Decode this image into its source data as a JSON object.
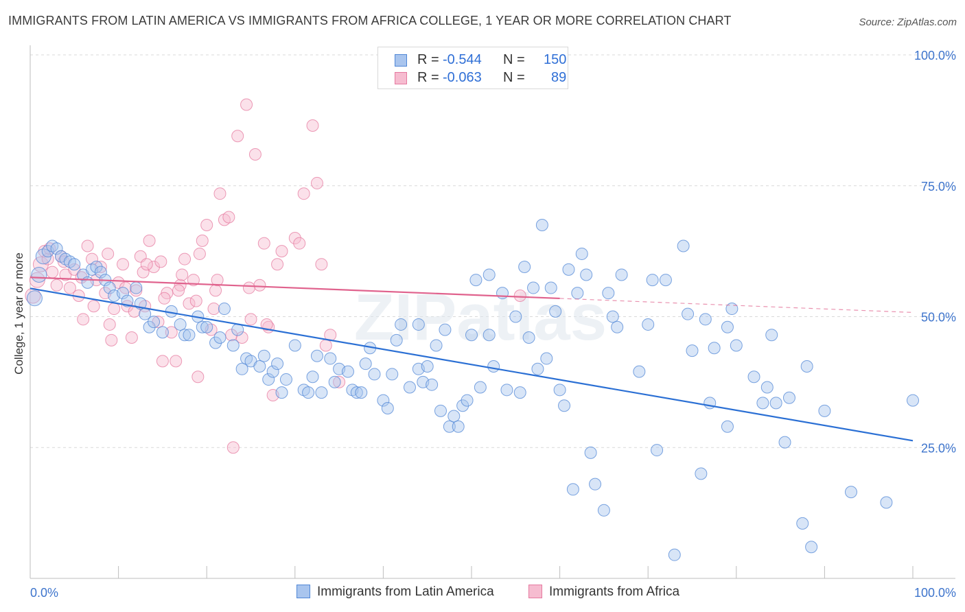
{
  "title": "IMMIGRANTS FROM LATIN AMERICA VS IMMIGRANTS FROM AFRICA COLLEGE, 1 YEAR OR MORE CORRELATION CHART",
  "source": "Source: ZipAtlas.com",
  "watermark": "ZIPatlas",
  "legend": {
    "r_label": "R =",
    "n_label": "N =",
    "series": [
      {
        "name": "Immigrants from Latin America",
        "r": "-0.544",
        "n": "150",
        "fill": "#a9c5ee",
        "stroke": "#4f86d6"
      },
      {
        "name": "Immigrants from Africa",
        "r": "-0.063",
        "n": "89",
        "fill": "#f6bcd0",
        "stroke": "#e5799f"
      }
    ]
  },
  "colors": {
    "blue_line": "#2a6fd4",
    "pink_line": "#e0628d",
    "grid": "#d9d9d9",
    "tick_label": "#3d74cc"
  },
  "chart_data": {
    "type": "scatter",
    "xlabel": "",
    "ylabel": "College, 1 year or more",
    "xlim": [
      0,
      100
    ],
    "ylim": [
      0,
      100
    ],
    "x_tick_labels": [
      "0.0%",
      "100.0%"
    ],
    "y_ticks": [
      25,
      50,
      75,
      100
    ],
    "y_tick_labels": [
      "25.0%",
      "50.0%",
      "75.0%",
      "100.0%"
    ],
    "grid": true,
    "series": [
      {
        "name": "Immigrants from Latin America",
        "trend": {
          "x": [
            0,
            100
          ],
          "y": [
            55.4,
            26.3
          ]
        },
        "points": [
          [
            0.5,
            53.5
          ],
          [
            1.0,
            58.0
          ],
          [
            1.5,
            61.5
          ],
          [
            2.0,
            62.5
          ],
          [
            2.5,
            63.5
          ],
          [
            3.0,
            63.0
          ],
          [
            3.5,
            61.5
          ],
          [
            4.0,
            61.0
          ],
          [
            4.5,
            60.5
          ],
          [
            5.0,
            60.0
          ],
          [
            6.0,
            58.0
          ],
          [
            6.5,
            56.5
          ],
          [
            7.0,
            59.0
          ],
          [
            7.5,
            59.5
          ],
          [
            8.0,
            58.5
          ],
          [
            8.5,
            57.0
          ],
          [
            9.0,
            55.5
          ],
          [
            9.5,
            54.0
          ],
          [
            10.5,
            54.5
          ],
          [
            11.0,
            53.0
          ],
          [
            12.0,
            55.5
          ],
          [
            12.5,
            52.5
          ],
          [
            13.0,
            50.5
          ],
          [
            13.5,
            48.0
          ],
          [
            14.0,
            49.0
          ],
          [
            15.0,
            47.0
          ],
          [
            16.0,
            51.0
          ],
          [
            17.0,
            48.5
          ],
          [
            17.5,
            46.5
          ],
          [
            18.0,
            46.5
          ],
          [
            19.0,
            50.0
          ],
          [
            19.5,
            48.0
          ],
          [
            20.0,
            48.0
          ],
          [
            21.0,
            45.0
          ],
          [
            21.5,
            46.0
          ],
          [
            22.0,
            51.5
          ],
          [
            23.0,
            44.5
          ],
          [
            23.5,
            47.5
          ],
          [
            24.0,
            40.0
          ],
          [
            24.5,
            42.0
          ],
          [
            25.0,
            41.5
          ],
          [
            26.0,
            40.5
          ],
          [
            26.5,
            42.5
          ],
          [
            27.0,
            38.0
          ],
          [
            27.5,
            39.5
          ],
          [
            28.0,
            41.0
          ],
          [
            28.5,
            35.5
          ],
          [
            29.0,
            38.0
          ],
          [
            30.0,
            44.5
          ],
          [
            31.0,
            36.0
          ],
          [
            31.5,
            35.5
          ],
          [
            32.0,
            38.5
          ],
          [
            32.5,
            42.5
          ],
          [
            33.0,
            35.5
          ],
          [
            34.0,
            42.0
          ],
          [
            34.5,
            37.5
          ],
          [
            35.0,
            40.0
          ],
          [
            36.0,
            39.5
          ],
          [
            36.5,
            36.0
          ],
          [
            37.0,
            35.5
          ],
          [
            37.5,
            35.5
          ],
          [
            38.0,
            41.0
          ],
          [
            38.5,
            44.0
          ],
          [
            39.0,
            39.0
          ],
          [
            40.0,
            34.0
          ],
          [
            40.5,
            32.5
          ],
          [
            41.0,
            39.0
          ],
          [
            41.5,
            45.5
          ],
          [
            42.0,
            48.5
          ],
          [
            43.0,
            36.5
          ],
          [
            44.0,
            40.0
          ],
          [
            44.5,
            37.5
          ],
          [
            45.0,
            40.5
          ],
          [
            45.5,
            37.0
          ],
          [
            46.0,
            44.5
          ],
          [
            46.5,
            32.0
          ],
          [
            47.0,
            47.5
          ],
          [
            47.5,
            29.0
          ],
          [
            48.0,
            31.0
          ],
          [
            48.5,
            29.0
          ],
          [
            49.0,
            33.0
          ],
          [
            49.5,
            34.0
          ],
          [
            50.0,
            46.5
          ],
          [
            50.5,
            57.0
          ],
          [
            51.0,
            36.5
          ],
          [
            52.0,
            46.5
          ],
          [
            52.5,
            40.5
          ],
          [
            53.5,
            54.5
          ],
          [
            54.0,
            36.0
          ],
          [
            55.0,
            50.0
          ],
          [
            55.5,
            35.5
          ],
          [
            56.0,
            59.5
          ],
          [
            56.5,
            46.0
          ],
          [
            57.0,
            55.5
          ],
          [
            57.5,
            40.0
          ],
          [
            58.0,
            67.5
          ],
          [
            59.0,
            55.5
          ],
          [
            59.5,
            51.0
          ],
          [
            60.0,
            36.0
          ],
          [
            60.5,
            33.0
          ],
          [
            61.0,
            59.0
          ],
          [
            61.5,
            17.0
          ],
          [
            62.0,
            54.5
          ],
          [
            63.0,
            58.0
          ],
          [
            63.5,
            24.0
          ],
          [
            64.0,
            18.0
          ],
          [
            65.0,
            13.0
          ],
          [
            65.5,
            54.5
          ],
          [
            66.0,
            50.0
          ],
          [
            66.5,
            48.0
          ],
          [
            67.0,
            58.0
          ],
          [
            69.0,
            39.5
          ],
          [
            70.0,
            48.5
          ],
          [
            70.5,
            57.0
          ],
          [
            71.0,
            24.5
          ],
          [
            72.0,
            57.0
          ],
          [
            73.0,
            4.5
          ],
          [
            74.0,
            63.5
          ],
          [
            74.5,
            50.5
          ],
          [
            75.0,
            43.5
          ],
          [
            76.0,
            20.0
          ],
          [
            76.5,
            49.5
          ],
          [
            77.0,
            33.5
          ],
          [
            77.5,
            44.0
          ],
          [
            79.0,
            48.0
          ],
          [
            79.5,
            51.5
          ],
          [
            80.0,
            44.5
          ],
          [
            82.0,
            38.5
          ],
          [
            83.0,
            33.5
          ],
          [
            83.5,
            36.5
          ],
          [
            84.0,
            46.5
          ],
          [
            84.5,
            33.5
          ],
          [
            85.5,
            26.0
          ],
          [
            86.0,
            34.5
          ],
          [
            87.5,
            10.5
          ],
          [
            88.5,
            6.0
          ],
          [
            90.0,
            32.0
          ],
          [
            93.0,
            16.5
          ],
          [
            97.0,
            14.5
          ],
          [
            100.0,
            34.0
          ],
          [
            62.5,
            62.0
          ],
          [
            44.0,
            48.5
          ],
          [
            52.0,
            58.0
          ],
          [
            58.5,
            42.0
          ],
          [
            79.0,
            29.0
          ],
          [
            88.0,
            40.5
          ]
        ]
      },
      {
        "name": "Immigrants from Africa",
        "trend": {
          "x": [
            0,
            100
          ],
          "y": [
            57.5,
            50.8
          ]
        },
        "points": [
          [
            0.3,
            54.0
          ],
          [
            0.8,
            57.0
          ],
          [
            1.2,
            60.0
          ],
          [
            1.6,
            62.5
          ],
          [
            2.0,
            61.0
          ],
          [
            2.5,
            58.5
          ],
          [
            3.0,
            56.0
          ],
          [
            3.5,
            61.5
          ],
          [
            4.0,
            58.0
          ],
          [
            4.5,
            55.5
          ],
          [
            5.0,
            59.0
          ],
          [
            5.5,
            54.0
          ],
          [
            6.0,
            49.5
          ],
          [
            6.5,
            63.5
          ],
          [
            7.0,
            61.0
          ],
          [
            7.5,
            57.0
          ],
          [
            8.0,
            59.5
          ],
          [
            8.5,
            54.5
          ],
          [
            9.0,
            48.5
          ],
          [
            9.5,
            51.5
          ],
          [
            10.0,
            56.5
          ],
          [
            10.5,
            60.0
          ],
          [
            11.0,
            52.0
          ],
          [
            11.5,
            46.0
          ],
          [
            12.0,
            55.0
          ],
          [
            12.5,
            61.5
          ],
          [
            13.0,
            52.0
          ],
          [
            13.5,
            64.5
          ],
          [
            14.0,
            59.5
          ],
          [
            14.5,
            49.0
          ],
          [
            15.0,
            41.5
          ],
          [
            15.5,
            54.5
          ],
          [
            16.0,
            47.0
          ],
          [
            16.5,
            41.5
          ],
          [
            17.0,
            56.0
          ],
          [
            17.5,
            61.0
          ],
          [
            18.0,
            52.5
          ],
          [
            18.5,
            57.0
          ],
          [
            19.0,
            38.5
          ],
          [
            19.5,
            64.5
          ],
          [
            20.0,
            67.5
          ],
          [
            20.5,
            47.5
          ],
          [
            21.0,
            55.0
          ],
          [
            21.5,
            73.5
          ],
          [
            22.0,
            68.5
          ],
          [
            22.5,
            69.0
          ],
          [
            23.0,
            25.0
          ],
          [
            23.5,
            84.5
          ],
          [
            24.0,
            46.0
          ],
          [
            24.5,
            90.5
          ],
          [
            25.0,
            49.5
          ],
          [
            25.5,
            81.0
          ],
          [
            26.0,
            56.0
          ],
          [
            26.5,
            64.0
          ],
          [
            27.0,
            48.0
          ],
          [
            27.5,
            35.0
          ],
          [
            28.0,
            60.0
          ],
          [
            28.5,
            62.5
          ],
          [
            30.0,
            65.0
          ],
          [
            30.5,
            64.0
          ],
          [
            31.0,
            73.5
          ],
          [
            32.0,
            86.5
          ],
          [
            32.5,
            75.5
          ],
          [
            33.0,
            60.0
          ],
          [
            33.5,
            44.5
          ],
          [
            34.0,
            46.5
          ],
          [
            35.0,
            37.5
          ],
          [
            2.2,
            63.0
          ],
          [
            3.8,
            60.5
          ],
          [
            5.8,
            57.5
          ],
          [
            7.2,
            52.0
          ],
          [
            8.8,
            62.0
          ],
          [
            10.8,
            55.5
          ],
          [
            12.8,
            58.5
          ],
          [
            14.8,
            60.5
          ],
          [
            16.8,
            55.0
          ],
          [
            18.8,
            53.0
          ],
          [
            20.8,
            51.5
          ],
          [
            22.8,
            46.5
          ],
          [
            24.8,
            55.5
          ],
          [
            26.8,
            48.5
          ],
          [
            9.2,
            45.5
          ],
          [
            11.8,
            51.0
          ],
          [
            13.2,
            60.0
          ],
          [
            15.2,
            53.5
          ],
          [
            17.2,
            58.0
          ],
          [
            19.2,
            62.0
          ],
          [
            21.2,
            57.0
          ],
          [
            55.5,
            54.0
          ]
        ]
      }
    ]
  }
}
